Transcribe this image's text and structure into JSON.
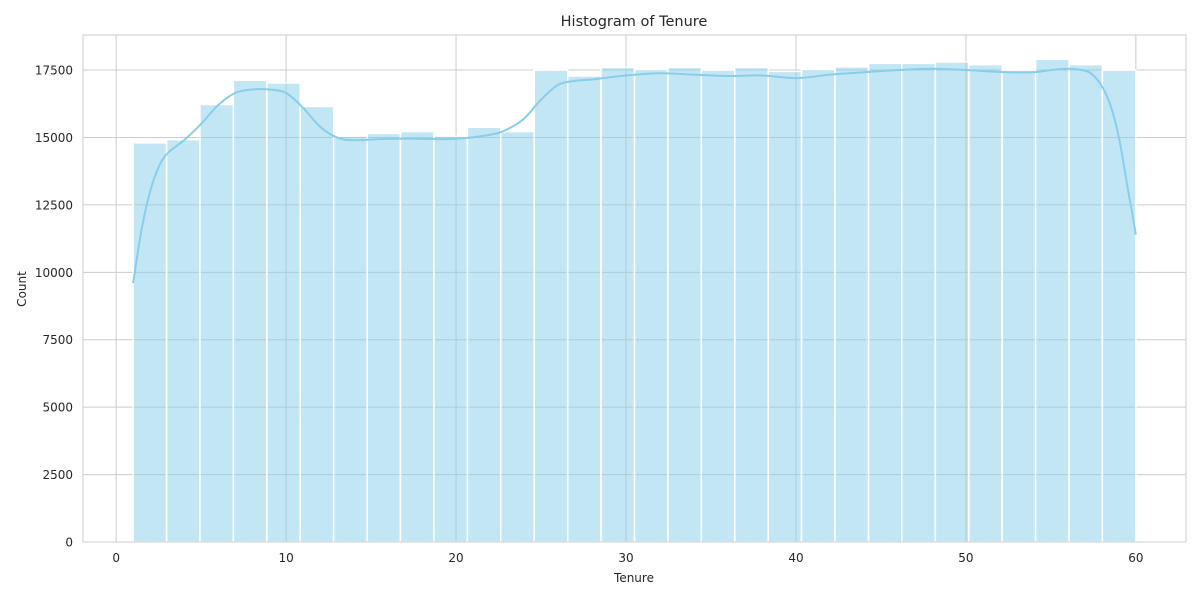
{
  "chart_data": {
    "type": "bar",
    "subtype": "histogram",
    "title": "Histogram of Tenure",
    "xlabel": "Tenure",
    "ylabel": "Count",
    "xlim": [
      -1.95,
      62.95
    ],
    "ylim": [
      0,
      18800
    ],
    "x_ticks": [
      0,
      10,
      20,
      30,
      40,
      50,
      60
    ],
    "y_ticks": [
      0,
      2500,
      5000,
      7500,
      10000,
      12500,
      15000,
      17500
    ],
    "grid": true,
    "bin_edges": [
      1,
      2.97,
      4.93,
      6.9,
      8.87,
      10.83,
      12.8,
      14.77,
      16.73,
      18.7,
      20.67,
      22.63,
      24.6,
      26.57,
      28.53,
      30.5,
      32.47,
      34.43,
      36.4,
      38.37,
      40.33,
      42.3,
      44.27,
      46.23,
      48.2,
      50.17,
      52.13,
      54.1,
      56.07,
      58.03,
      60
    ],
    "values": [
      14800,
      14920,
      16220,
      17120,
      17020,
      16150,
      15050,
      15150,
      15220,
      15050,
      15380,
      15220,
      17500,
      17280,
      17600,
      17520,
      17600,
      17500,
      17600,
      17450,
      17520,
      17620,
      17750,
      17750,
      17800,
      17700,
      17500,
      17900,
      17700,
      17500
    ],
    "kde": {
      "x": [
        1,
        1.5,
        2,
        2.5,
        3,
        4,
        5,
        6,
        7,
        8,
        9,
        10,
        11,
        12,
        13,
        14,
        16,
        18,
        20,
        22,
        23,
        24,
        25,
        26,
        27,
        28,
        30,
        32,
        34,
        36,
        38,
        40,
        42,
        44,
        46,
        48,
        50,
        52,
        54,
        55,
        56,
        57,
        57.5,
        58,
        58.5,
        59,
        59.5,
        60
      ],
      "y": [
        9600,
        11600,
        13000,
        13900,
        14400,
        14900,
        15500,
        16200,
        16650,
        16780,
        16780,
        16650,
        16100,
        15400,
        15000,
        14900,
        14950,
        14950,
        14950,
        15100,
        15300,
        15700,
        16400,
        16950,
        17100,
        17150,
        17300,
        17380,
        17330,
        17280,
        17300,
        17200,
        17330,
        17420,
        17500,
        17550,
        17500,
        17430,
        17420,
        17500,
        17550,
        17480,
        17300,
        16900,
        16200,
        15000,
        13200,
        11400
      ]
    },
    "colors": {
      "bar_fill": "#87ceeb",
      "bar_fill_opacity": 0.5,
      "bar_edge": "#ffffff",
      "kde_line": "#87ceeb",
      "grid": "#cccccc",
      "axes_edge": "#cccccc",
      "background": "#ffffff"
    }
  }
}
